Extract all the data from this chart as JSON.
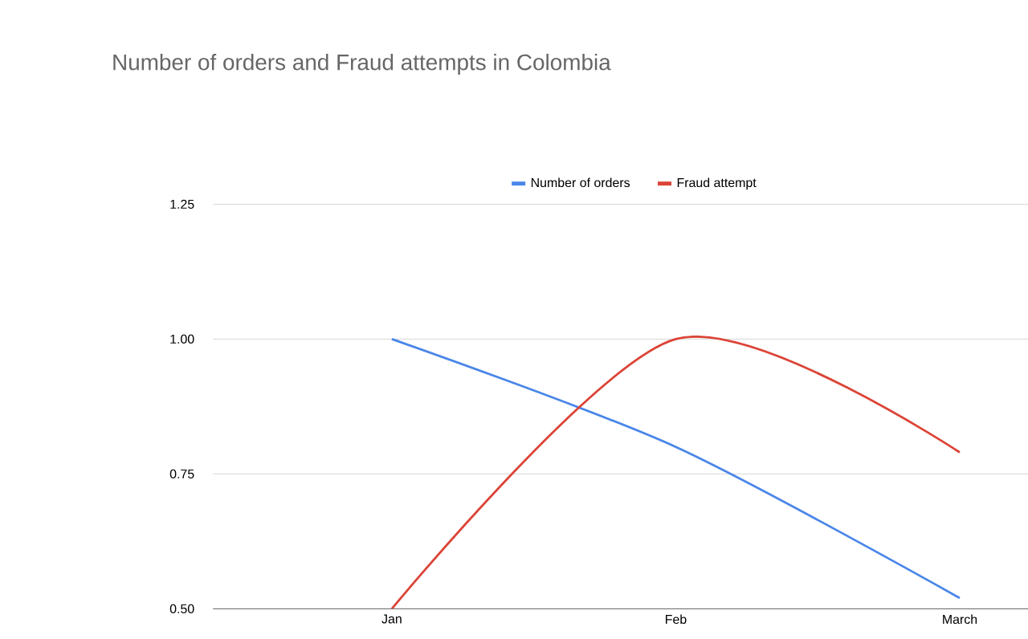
{
  "chart_data": {
    "type": "line",
    "title": "Number of orders and Fraud attempts in Colombia",
    "categories": [
      "Jan",
      "Feb",
      "March"
    ],
    "series": [
      {
        "name": "Number of orders",
        "color": "#4a86e8",
        "values": [
          1.0,
          0.8,
          0.52
        ]
      },
      {
        "name": "Fraud attempt",
        "color": "#db4437",
        "values": [
          0.5,
          1.0,
          0.79
        ]
      }
    ],
    "ylim": [
      0.5,
      1.25
    ],
    "yticks": [
      {
        "value": 0.5,
        "label": "0.50"
      },
      {
        "value": 0.75,
        "label": "0.75"
      },
      {
        "value": 1.0,
        "label": "1.00"
      },
      {
        "value": 1.25,
        "label": "1.25"
      }
    ],
    "grid": "y",
    "legend": "top",
    "marker": "none",
    "line_style": "solid"
  }
}
